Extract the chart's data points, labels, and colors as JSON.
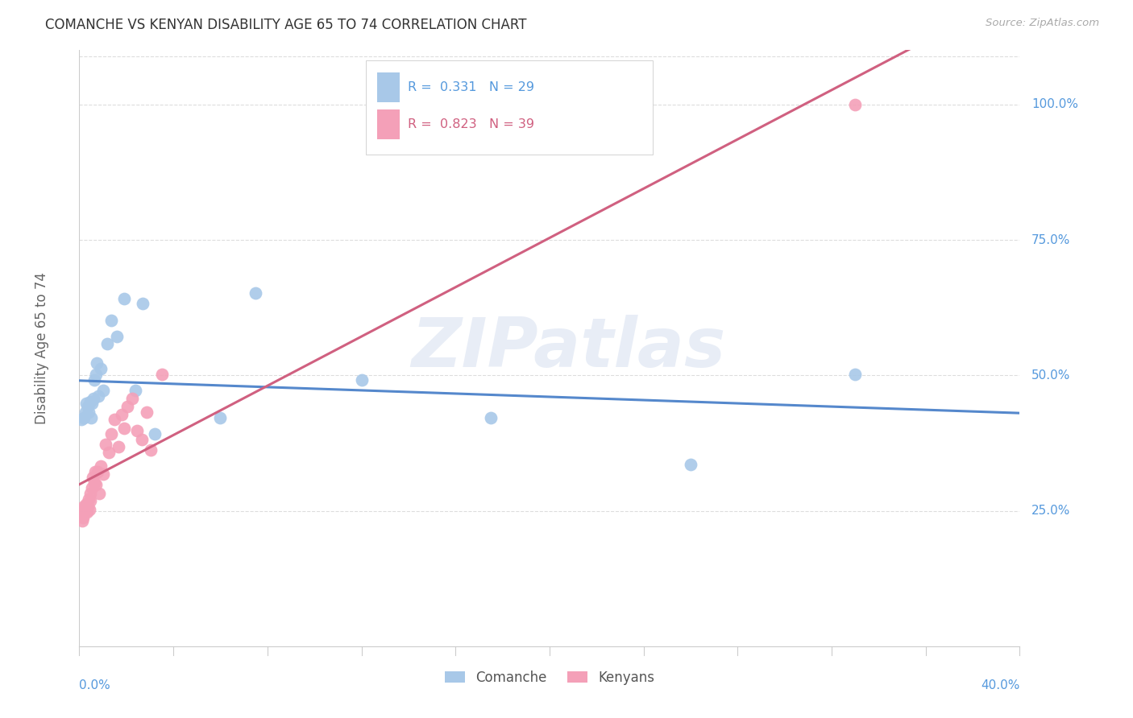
{
  "title": "COMANCHE VS KENYAN DISABILITY AGE 65 TO 74 CORRELATION CHART",
  "source": "Source: ZipAtlas.com",
  "ylabel": "Disability Age 65 to 74",
  "legend_comanche_R": 0.331,
  "legend_comanche_N": 29,
  "legend_kenyan_R": 0.823,
  "legend_kenyan_N": 39,
  "watermark": "ZIPatlas",
  "comanche_scatter_color": "#a8c8e8",
  "kenyan_scatter_color": "#f4a0b8",
  "comanche_line_color": "#5588cc",
  "kenyan_line_color": "#d06080",
  "tick_label_color": "#5599dd",
  "comanche_x": [
    0.001,
    0.002,
    0.0025,
    0.003,
    0.0035,
    0.004,
    0.0045,
    0.005,
    0.0055,
    0.006,
    0.0065,
    0.007,
    0.0075,
    0.008,
    0.009,
    0.01,
    0.012,
    0.0135,
    0.016,
    0.019,
    0.024,
    0.027,
    0.032,
    0.06,
    0.075,
    0.12,
    0.175,
    0.26,
    0.33
  ],
  "comanche_y": [
    0.418,
    0.422,
    0.432,
    0.448,
    0.442,
    0.432,
    0.452,
    0.422,
    0.448,
    0.458,
    0.492,
    0.502,
    0.522,
    0.462,
    0.512,
    0.472,
    0.558,
    0.602,
    0.572,
    0.642,
    0.472,
    0.632,
    0.392,
    0.422,
    0.652,
    0.492,
    0.422,
    0.335,
    0.502
  ],
  "kenyan_x": [
    0.0005,
    0.0008,
    0.001,
    0.0012,
    0.0015,
    0.0018,
    0.0022,
    0.0025,
    0.0028,
    0.0032,
    0.0035,
    0.0038,
    0.0042,
    0.0045,
    0.0048,
    0.0052,
    0.0058,
    0.0062,
    0.0068,
    0.0072,
    0.0078,
    0.0085,
    0.0092,
    0.01,
    0.011,
    0.0125,
    0.0135,
    0.015,
    0.0165,
    0.018,
    0.0192,
    0.0205,
    0.0225,
    0.0245,
    0.0265,
    0.0285,
    0.0305,
    0.035,
    0.33
  ],
  "kenyan_y": [
    0.242,
    0.248,
    0.252,
    0.232,
    0.238,
    0.258,
    0.248,
    0.252,
    0.262,
    0.248,
    0.258,
    0.272,
    0.252,
    0.282,
    0.268,
    0.292,
    0.312,
    0.302,
    0.322,
    0.298,
    0.322,
    0.282,
    0.332,
    0.318,
    0.372,
    0.358,
    0.392,
    0.418,
    0.368,
    0.428,
    0.402,
    0.442,
    0.458,
    0.398,
    0.382,
    0.432,
    0.362,
    0.502,
    1.0
  ],
  "xmin": 0.0,
  "xmax": 0.4,
  "ymin": 0.0,
  "ymax": 1.1,
  "ytick_vals": [
    0.25,
    0.5,
    0.75,
    1.0
  ],
  "ytick_labels": [
    "25.0%",
    "50.0%",
    "75.0%",
    "100.0%"
  ],
  "background_color": "#ffffff",
  "grid_color": "#dddddd",
  "title_color": "#333333",
  "ylabel_color": "#666666",
  "source_color": "#aaaaaa",
  "spine_color": "#cccccc"
}
